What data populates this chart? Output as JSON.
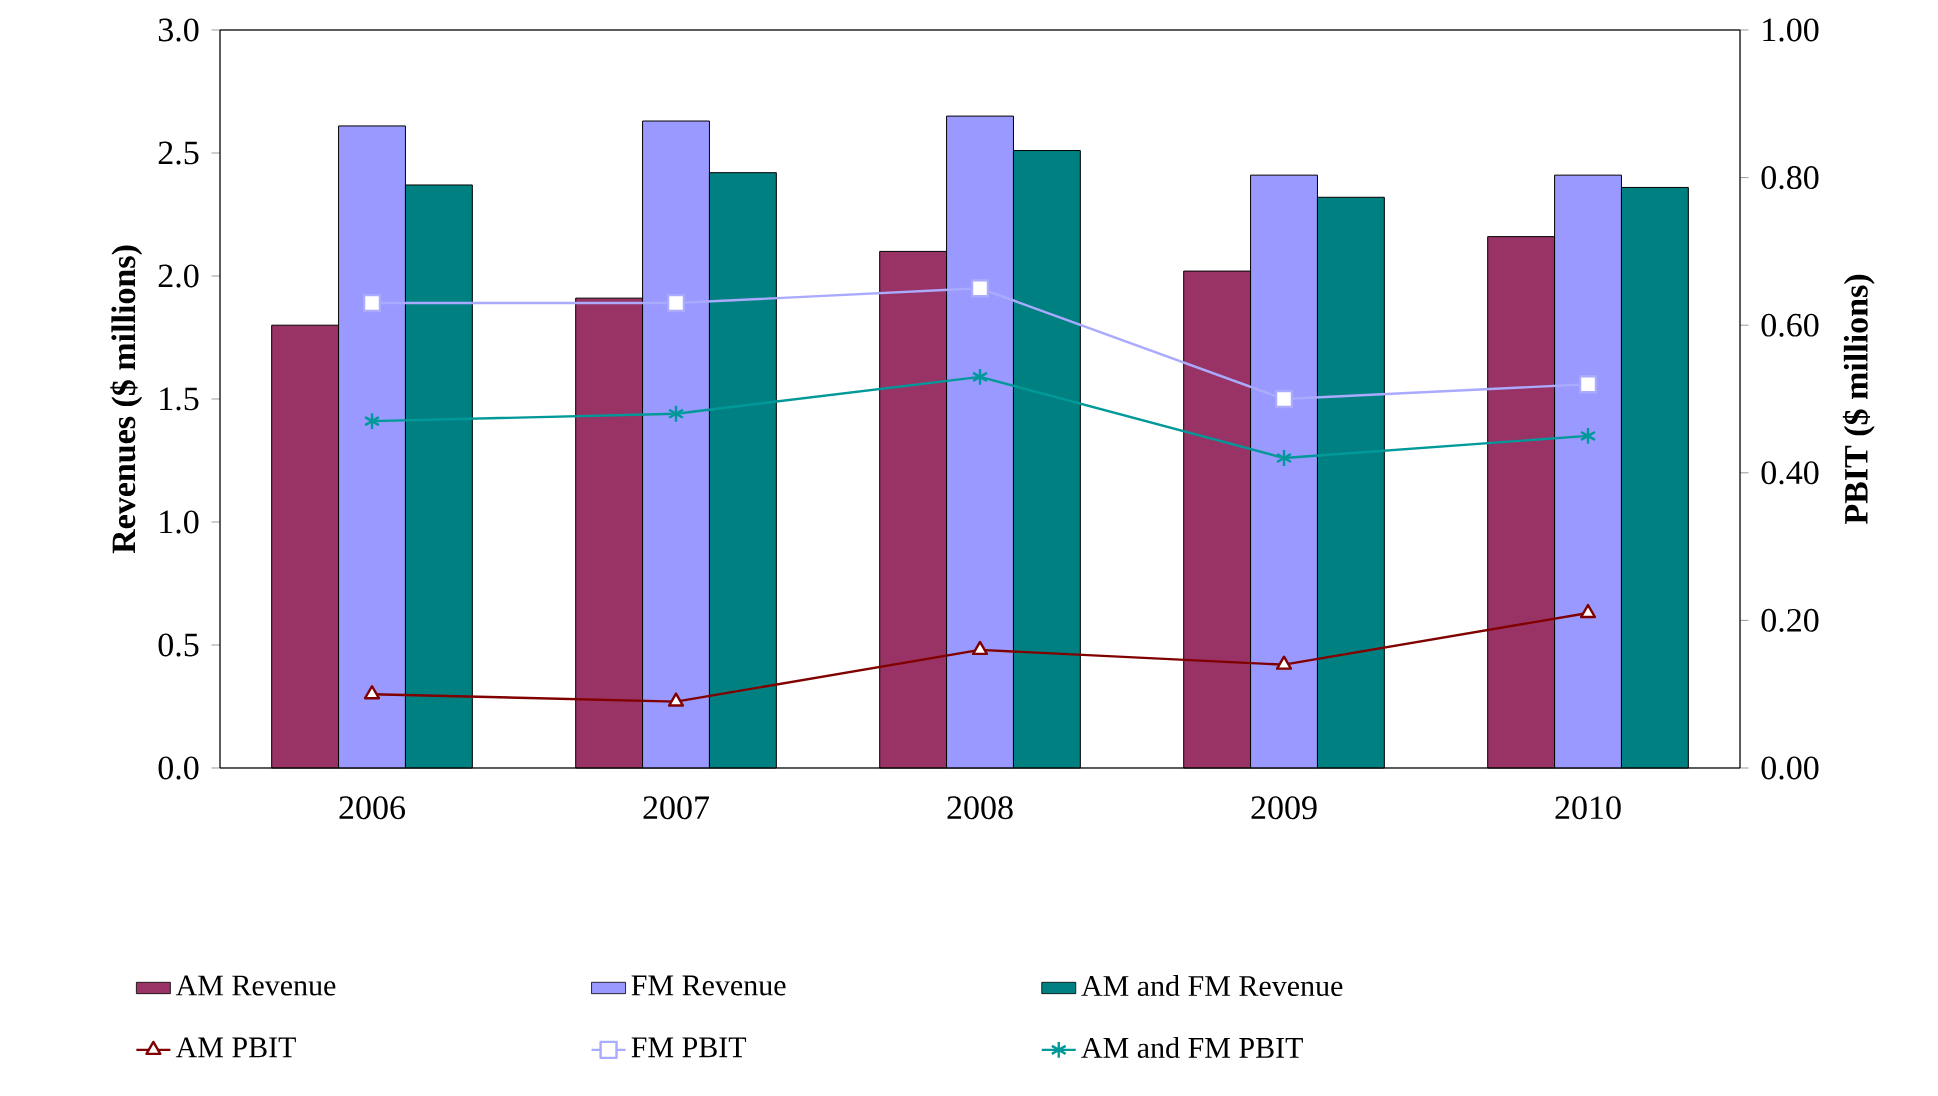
{
  "chart_data": {
    "type": "bar",
    "categories": [
      "2006",
      "2007",
      "2008",
      "2009",
      "2010"
    ],
    "ylabel": "Revenues ($ millions)",
    "y2label": "PBIT ($ millions)",
    "ylim": [
      0,
      3
    ],
    "yticks": [
      {
        "value": 0,
        "label": "0.0"
      },
      {
        "value": 0.5,
        "label": "0.5"
      },
      {
        "value": 1,
        "label": "1.0"
      },
      {
        "value": 1.5,
        "label": "1.5"
      },
      {
        "value": 2,
        "label": "2.0"
      },
      {
        "value": 2.5,
        "label": "2.5"
      },
      {
        "value": 3,
        "label": "3.0"
      }
    ],
    "y2lim": [
      0,
      1
    ],
    "y2ticks": [
      {
        "value": 0,
        "label": "0.00"
      },
      {
        "value": 0.2,
        "label": "0.20"
      },
      {
        "value": 0.4,
        "label": "0.40"
      },
      {
        "value": 0.6,
        "label": "0.60"
      },
      {
        "value": 0.8,
        "label": "0.80"
      },
      {
        "value": 1,
        "label": "1.00"
      }
    ],
    "legend": "bottom",
    "series": [
      {
        "name": "AM Revenue",
        "color": "#993366",
        "values": [
          1.8,
          1.91,
          2.1,
          2.02,
          2.16
        ]
      },
      {
        "name": "FM Revenue",
        "color": "#9999ff",
        "values": [
          2.61,
          2.63,
          2.65,
          2.41,
          2.41
        ]
      },
      {
        "name": "AM and FM Revenue",
        "color": "#008080",
        "values": [
          2.37,
          2.42,
          2.51,
          2.32,
          2.36
        ]
      },
      {
        "name": "AM PBIT",
        "type": "line",
        "axis": "y2",
        "marker": "triangle",
        "color": "#800000",
        "values": [
          0.1,
          0.09,
          0.16,
          0.14,
          0.21
        ]
      },
      {
        "name": "FM PBIT",
        "type": "line",
        "axis": "y2",
        "marker": "square",
        "color": "#aaaaff",
        "values": [
          0.63,
          0.63,
          0.65,
          0.5,
          0.52
        ]
      },
      {
        "name": "AM and FM PBIT",
        "type": "line",
        "axis": "y2",
        "marker": "cross",
        "color": "#009999",
        "values": [
          0.47,
          0.48,
          0.53,
          0.42,
          0.45
        ]
      }
    ]
  }
}
